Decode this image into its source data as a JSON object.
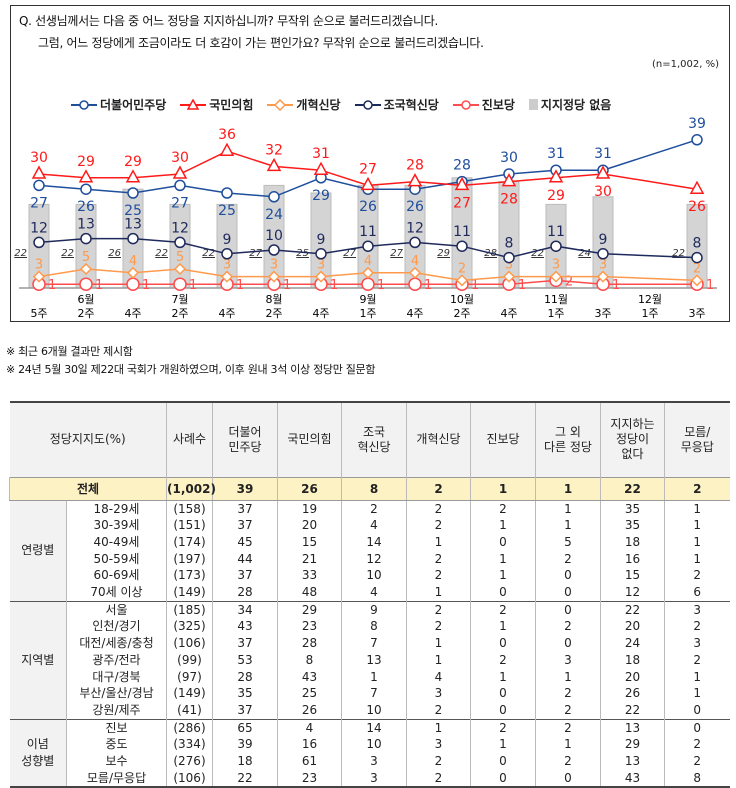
{
  "question": {
    "line1": "Q. 선생님께서는 다음 중 어느 정당을 지지하십니까? 무작위 순으로 불러드리겠습니다.",
    "line2": "그럼, 어느 정당에게 조금이라도 더 호감이 가는 편인가요? 무작위 순으로 불러드리겠습니다.",
    "unit": "(n=1,002,  %)"
  },
  "chart_data": {
    "type": "line",
    "x": [
      [
        "",
        "5주"
      ],
      [
        "6월",
        "2주"
      ],
      [
        "",
        "4주"
      ],
      [
        "7월",
        "2주"
      ],
      [
        "",
        "4주"
      ],
      [
        "8월",
        "2주"
      ],
      [
        "",
        "4주"
      ],
      [
        "9월",
        "1주"
      ],
      [
        "",
        "4주"
      ],
      [
        "10월",
        "2주"
      ],
      [
        "",
        "4주"
      ],
      [
        "11월",
        "1주"
      ],
      [
        "",
        "3주"
      ],
      [
        "12월",
        "1주"
      ],
      [
        "",
        "3주"
      ]
    ],
    "bars": {
      "name": "지지정당 없음",
      "color": "#cccccc",
      "values": [
        22,
        22,
        26,
        22,
        22,
        27,
        25,
        27,
        27,
        29,
        28,
        22,
        24,
        null,
        22
      ]
    },
    "series": [
      {
        "name": "더불어민주당",
        "color": "#1f4e9c",
        "marker": "circle",
        "values": [
          27,
          26,
          25,
          27,
          25,
          24,
          29,
          26,
          26,
          28,
          30,
          31,
          31,
          null,
          39
        ]
      },
      {
        "name": "국민의힘",
        "color": "#ff1a1a",
        "marker": "triangle",
        "values": [
          30,
          29,
          29,
          30,
          36,
          32,
          31,
          27,
          28,
          27,
          28,
          29,
          30,
          null,
          26
        ]
      },
      {
        "name": "개혁신당",
        "color": "#ff9a4d",
        "marker": "diamond",
        "values": [
          3,
          5,
          4,
          5,
          3,
          3,
          3,
          4,
          4,
          2,
          3,
          3,
          3,
          null,
          2
        ]
      },
      {
        "name": "조국혁신당",
        "color": "#1f2a5c",
        "marker": "circle",
        "values": [
          12,
          13,
          13,
          12,
          9,
          10,
          9,
          11,
          12,
          11,
          8,
          11,
          9,
          null,
          8
        ]
      },
      {
        "name": "진보당",
        "color": "#ff4d4d",
        "marker": "circle",
        "values": [
          1,
          1,
          1,
          1,
          1,
          1,
          1,
          1,
          1,
          1,
          1,
          2,
          1,
          null,
          1
        ]
      }
    ],
    "ylim": [
      0,
      45
    ]
  },
  "notes": [
    "※ 최근 6개월 결과만 제시함",
    "※ 24년 5월 30일 제22대 국회가 개원하였으며, 이후 원내 3석 이상 정당만 질문함"
  ],
  "table": {
    "headers": [
      "정당지지도(%)",
      "사례수",
      "더불어\n민주당",
      "국민의힘",
      "조국\n혁신당",
      "개혁신당",
      "진보당",
      "그 외\n다른 정당",
      "지지하는\n정당이\n없다",
      "모름/\n무응답"
    ],
    "total": [
      "전체",
      "(1,002)",
      "39",
      "26",
      "8",
      "2",
      "1",
      "1",
      "22",
      "2"
    ],
    "groups": [
      {
        "name": "연령별",
        "rows": [
          [
            "18-29세",
            "(158)",
            "37",
            "19",
            "2",
            "2",
            "2",
            "1",
            "35",
            "1"
          ],
          [
            "30-39세",
            "(151)",
            "37",
            "20",
            "4",
            "2",
            "1",
            "1",
            "35",
            "1"
          ],
          [
            "40-49세",
            "(174)",
            "45",
            "15",
            "14",
            "1",
            "0",
            "5",
            "18",
            "1"
          ],
          [
            "50-59세",
            "(197)",
            "44",
            "21",
            "12",
            "2",
            "1",
            "2",
            "16",
            "1"
          ],
          [
            "60-69세",
            "(173)",
            "37",
            "33",
            "10",
            "2",
            "1",
            "0",
            "15",
            "2"
          ],
          [
            "70세 이상",
            "(149)",
            "28",
            "48",
            "4",
            "1",
            "0",
            "0",
            "12",
            "6"
          ]
        ]
      },
      {
        "name": "지역별",
        "rows": [
          [
            "서울",
            "(185)",
            "34",
            "29",
            "9",
            "2",
            "2",
            "0",
            "22",
            "3"
          ],
          [
            "인천/경기",
            "(325)",
            "43",
            "23",
            "8",
            "2",
            "1",
            "2",
            "20",
            "2"
          ],
          [
            "대전/세종/충청",
            "(106)",
            "37",
            "28",
            "7",
            "1",
            "0",
            "0",
            "24",
            "3"
          ],
          [
            "광주/전라",
            "(99)",
            "53",
            "8",
            "13",
            "1",
            "2",
            "3",
            "18",
            "2"
          ],
          [
            "대구/경북",
            "(97)",
            "28",
            "43",
            "1",
            "4",
            "1",
            "1",
            "20",
            "1"
          ],
          [
            "부산/울산/경남",
            "(149)",
            "35",
            "25",
            "7",
            "3",
            "0",
            "2",
            "26",
            "1"
          ],
          [
            "강원/제주",
            "(41)",
            "37",
            "26",
            "10",
            "2",
            "0",
            "2",
            "22",
            "0"
          ]
        ]
      },
      {
        "name": "이념\n성향별",
        "rows": [
          [
            "진보",
            "(286)",
            "65",
            "4",
            "14",
            "1",
            "2",
            "2",
            "13",
            "0"
          ],
          [
            "중도",
            "(334)",
            "39",
            "16",
            "10",
            "3",
            "1",
            "1",
            "29",
            "2"
          ],
          [
            "보수",
            "(276)",
            "18",
            "61",
            "3",
            "2",
            "0",
            "2",
            "13",
            "2"
          ],
          [
            "모름/무응답",
            "(106)",
            "22",
            "23",
            "3",
            "2",
            "0",
            "0",
            "43",
            "8"
          ]
        ]
      }
    ]
  }
}
